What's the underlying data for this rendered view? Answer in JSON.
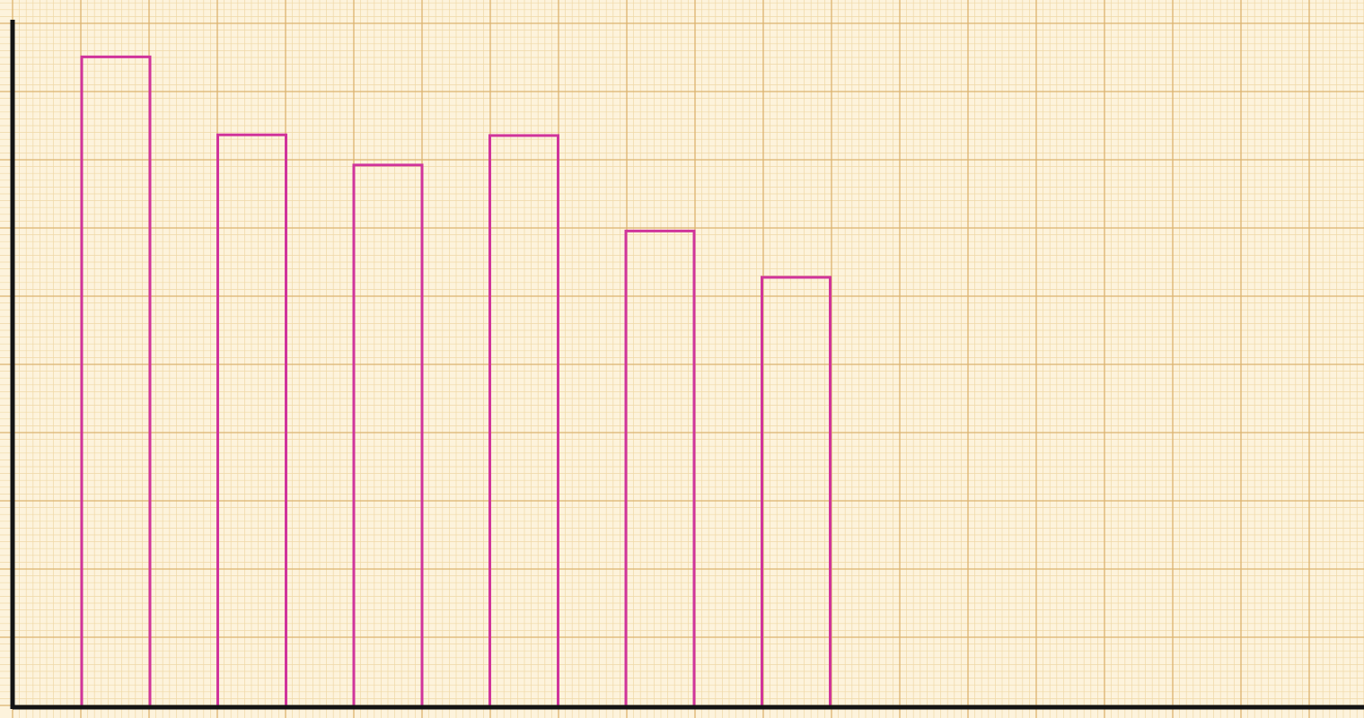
{
  "chart_data": {
    "type": "bar",
    "categories": [
      "",
      "",
      "",
      "",
      "",
      ""
    ],
    "values": [
      92.4,
      81.3,
      77.0,
      81.2,
      67.6,
      61.0
    ],
    "ylim": [
      0,
      100
    ],
    "grid": true,
    "legend": "none",
    "title": "",
    "xlabel": "",
    "ylabel": ""
  },
  "colors": {
    "paper": "#fdf3dc",
    "grid_minor": "#efd8a6",
    "grid_major": "#dcb36f",
    "bar_outline": "#d0349b",
    "axis": "#141414"
  }
}
